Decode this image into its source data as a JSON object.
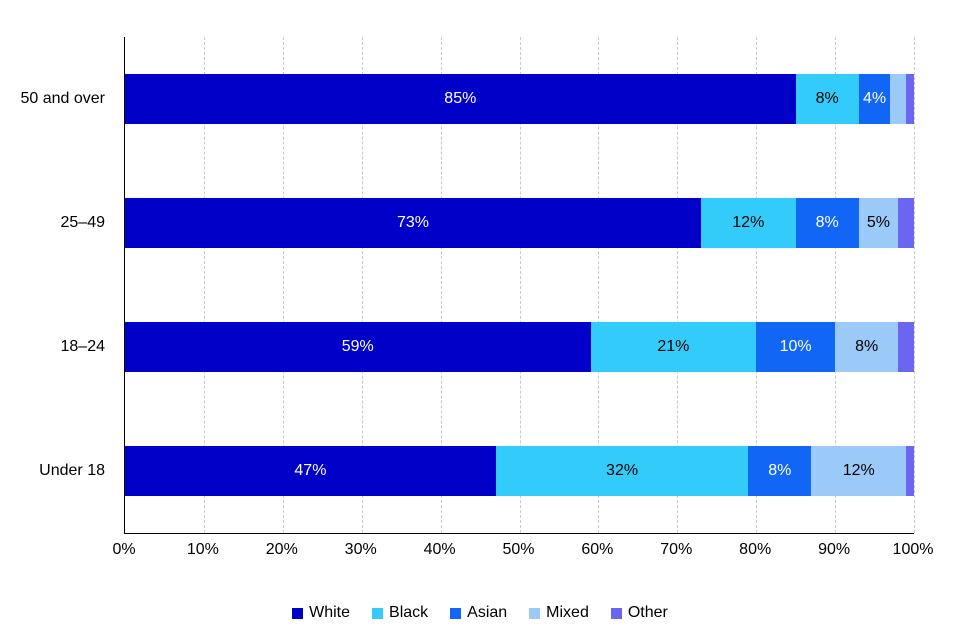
{
  "chart_data": {
    "type": "bar",
    "variant": "horizontal-stacked",
    "title": "",
    "xlabel": "",
    "ylabel": "",
    "xlim": [
      0,
      100
    ],
    "grid": "vertical-dashed",
    "legend_position": "bottom",
    "value_label_suffix": "%",
    "value_label_min": 4,
    "categories": [
      "50 and over",
      "25–49",
      "18–24",
      "Under 18"
    ],
    "x_ticks": [
      "0%",
      "10%",
      "20%",
      "30%",
      "40%",
      "50%",
      "60%",
      "70%",
      "80%",
      "90%",
      "100%"
    ],
    "x_tick_values": [
      0,
      10,
      20,
      30,
      40,
      50,
      60,
      70,
      80,
      90,
      100
    ],
    "series": [
      {
        "name": "White",
        "color": "#0000C8",
        "label_color": "#FFFFFF",
        "values": [
          85,
          73,
          59,
          47
        ]
      },
      {
        "name": "Black",
        "color": "#33CCFA",
        "label_color": "#000000",
        "values": [
          8,
          12,
          21,
          32
        ]
      },
      {
        "name": "Asian",
        "color": "#1166F5",
        "label_color": "#FFFFFF",
        "values": [
          4,
          8,
          10,
          8
        ]
      },
      {
        "name": "Mixed",
        "color": "#9CCAF8",
        "label_color": "#000000",
        "values": [
          2,
          5,
          8,
          12
        ]
      },
      {
        "name": "Other",
        "color": "#6A66F2",
        "label_color": "#000000",
        "values": [
          1,
          2,
          2,
          1
        ]
      }
    ]
  },
  "colors": {
    "background": "#FFFFFF",
    "axis": "#000000",
    "gridline": "#C9C9C9",
    "text": "#000000"
  }
}
